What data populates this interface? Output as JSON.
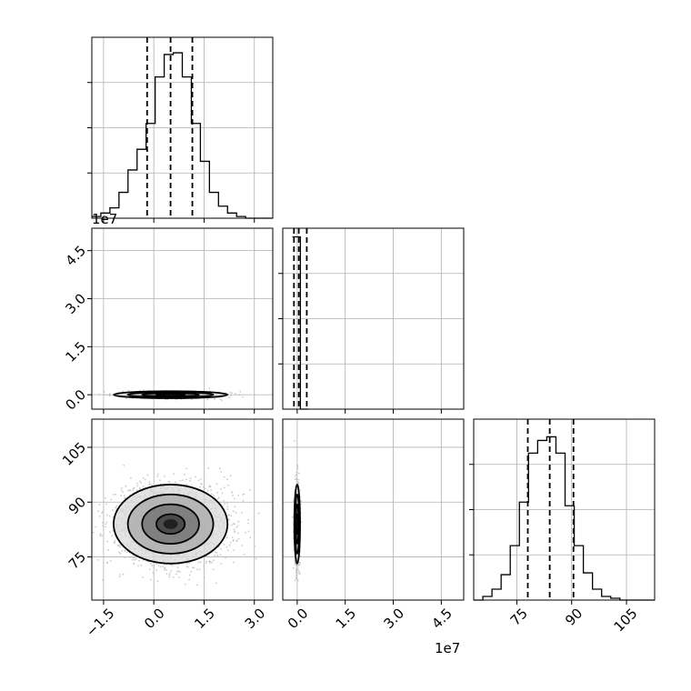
{
  "chart_data": {
    "type": "corner",
    "grid": true,
    "x_offset_label": "1e7",
    "y_offset_label": "1e7",
    "param1": {
      "ticks": [
        -1.5,
        0.0,
        1.5,
        3.0
      ],
      "tick_labels": [
        "−1.5",
        "0.0",
        "1.5",
        "3.0"
      ],
      "range": [
        -1.85,
        3.55
      ],
      "hist_edges": [
        -1.85,
        -1.58,
        -1.31,
        -1.04,
        -0.77,
        -0.5,
        -0.23,
        0.04,
        0.31,
        0.58,
        0.85,
        1.12,
        1.39,
        1.66,
        1.93,
        2.2,
        2.47,
        2.74,
        3.01,
        3.28,
        3.55
      ],
      "hist_counts": [
        1,
        3,
        6,
        15,
        28,
        40,
        55,
        82,
        95,
        96,
        82,
        55,
        33,
        15,
        7,
        3,
        1,
        0,
        0,
        0
      ],
      "quantiles": [
        -0.2,
        0.5,
        1.15
      ]
    },
    "param2": {
      "ticks": [
        0.0,
        1.5,
        3.0,
        4.5
      ],
      "tick_labels": [
        "0.0",
        "1.5",
        "3.0",
        "4.5"
      ],
      "range": [
        -0.45,
        5.2
      ],
      "hist_edges": [
        -0.15,
        0.1,
        0.35
      ],
      "hist_counts": [
        1,
        0
      ],
      "quantiles": [
        -0.1,
        0.05,
        0.3
      ],
      "y_ticks": [
        0.0,
        1.5,
        3.0,
        4.5
      ],
      "y_tick_labels": [
        "0.0",
        "1.5",
        "3.0",
        "4.5"
      ]
    },
    "param3": {
      "ticks": [
        75,
        90,
        105
      ],
      "tick_labels": [
        "75",
        "90",
        "105"
      ],
      "range": [
        63.2,
        112.7
      ],
      "hist_edges": [
        63.2,
        65.7,
        68.2,
        70.7,
        73.2,
        75.7,
        78.2,
        80.7,
        83.2,
        85.7,
        88.2,
        90.7,
        93.2,
        95.7,
        98.2,
        100.7,
        103.2,
        105.7,
        108.2,
        110.7,
        112.7
      ],
      "hist_counts": [
        0,
        2,
        6,
        14,
        30,
        54,
        81,
        88,
        90,
        81,
        52,
        30,
        15,
        6,
        2,
        1,
        0,
        0,
        0,
        0
      ],
      "quantiles": [
        78,
        84,
        90.5
      ]
    }
  }
}
